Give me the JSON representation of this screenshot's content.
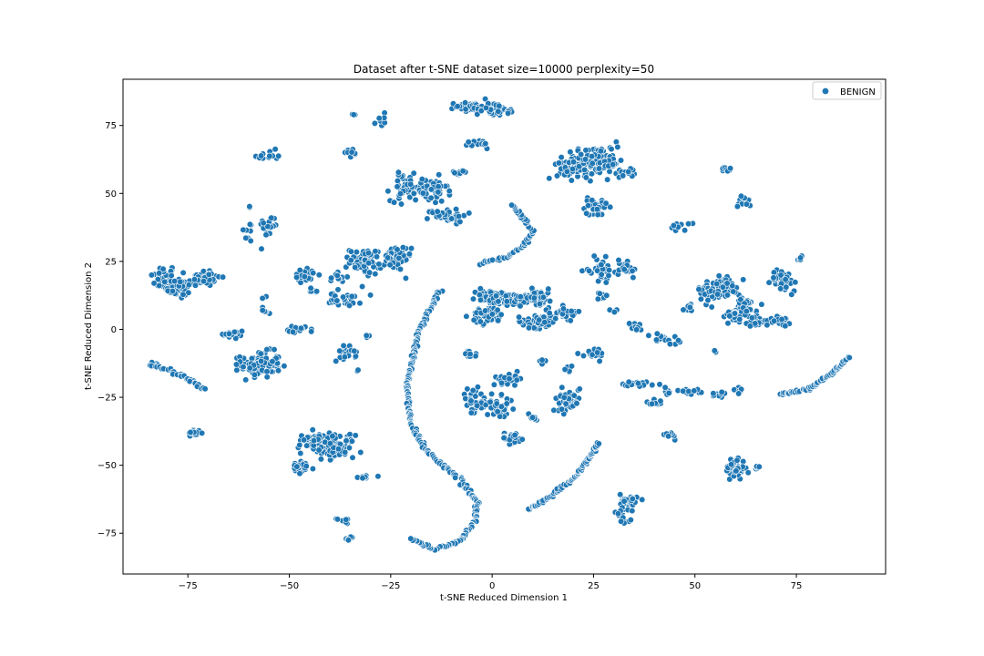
{
  "chart_data": {
    "type": "scatter",
    "title": "Dataset after t-SNE dataset size=10000 perplexity=50",
    "xlabel": "t-SNE Reduced Dimension 1",
    "ylabel": "t-SNE Reduced Dimension 2",
    "xlim": [
      -91,
      97
    ],
    "ylim": [
      -90,
      92
    ],
    "xticks": [
      -75,
      -50,
      -25,
      0,
      25,
      50,
      75
    ],
    "yticks": [
      75,
      50,
      25,
      0,
      -25,
      -50,
      -75
    ],
    "xtick_labels": [
      "−75",
      "−50",
      "−25",
      "0",
      "25",
      "50",
      "75"
    ],
    "ytick_labels": [
      "75",
      "50",
      "25",
      "0",
      "−25",
      "−50",
      "−75"
    ],
    "grid": false,
    "legend_position": "top-right",
    "series": [
      {
        "name": "BENIGN",
        "color": "#1f77b4",
        "clusters": [
          {
            "cx": -81,
            "cy": 19,
            "sx": 2.0,
            "sy": 3.0,
            "n": 40
          },
          {
            "cx": -77,
            "cy": 15,
            "sx": 2.0,
            "sy": 2.5,
            "n": 40
          },
          {
            "cx": -71,
            "cy": 19,
            "sx": 2.5,
            "sy": 2.0,
            "n": 40
          },
          {
            "cx": -64,
            "cy": -2,
            "sx": 2.0,
            "sy": 1.2,
            "n": 20
          },
          {
            "cx": -60,
            "cy": 36,
            "sx": 0.8,
            "sy": 2.5,
            "n": 8
          },
          {
            "cx": -57,
            "cy": 64,
            "sx": 1.0,
            "sy": 1.0,
            "n": 6
          },
          {
            "cx": -54,
            "cy": 64,
            "sx": 1.2,
            "sy": 2.0,
            "n": 8
          },
          {
            "cx": -55,
            "cy": 38,
            "sx": 1.5,
            "sy": 2.5,
            "n": 18
          },
          {
            "cx": -56,
            "cy": 7,
            "sx": 1.0,
            "sy": 1.0,
            "n": 6
          },
          {
            "cx": -56,
            "cy": 12,
            "sx": 0.5,
            "sy": 0.5,
            "n": 2
          },
          {
            "cx": -57,
            "cy": -13,
            "sx": 3.0,
            "sy": 3.0,
            "n": 110
          },
          {
            "cx": -46,
            "cy": 20,
            "sx": 2.0,
            "sy": 1.5,
            "n": 22
          },
          {
            "cx": -44,
            "cy": 14,
            "sx": 1.0,
            "sy": 0.8,
            "n": 8
          },
          {
            "cx": -47,
            "cy": 0,
            "sx": 2.0,
            "sy": 0.8,
            "n": 16
          },
          {
            "cx": -44,
            "cy": -42,
            "sx": 2.5,
            "sy": 2.5,
            "n": 60
          },
          {
            "cx": -38,
            "cy": -43,
            "sx": 2.5,
            "sy": 2.5,
            "n": 70
          },
          {
            "cx": -47,
            "cy": -51,
            "sx": 2.0,
            "sy": 1.5,
            "n": 25
          },
          {
            "cx": -38,
            "cy": 19,
            "sx": 1.5,
            "sy": 2.0,
            "n": 12
          },
          {
            "cx": -36,
            "cy": 11,
            "sx": 2.5,
            "sy": 1.5,
            "n": 35
          },
          {
            "cx": -36,
            "cy": -9,
            "sx": 1.5,
            "sy": 1.8,
            "n": 22
          },
          {
            "cx": -37,
            "cy": -70,
            "sx": 1.2,
            "sy": 1.0,
            "n": 10
          },
          {
            "cx": -35,
            "cy": -77,
            "sx": 0.8,
            "sy": 0.4,
            "n": 5
          },
          {
            "cx": -35,
            "cy": 65,
            "sx": 1.0,
            "sy": 1.0,
            "n": 10
          },
          {
            "cx": -34,
            "cy": 79,
            "sx": 0.4,
            "sy": 0.4,
            "n": 3
          },
          {
            "cx": -31,
            "cy": -54,
            "sx": 1.2,
            "sy": 0.6,
            "n": 8
          },
          {
            "cx": -31,
            "cy": -3,
            "sx": 0.6,
            "sy": 0.6,
            "n": 3
          },
          {
            "cx": -33,
            "cy": -15,
            "sx": 0.4,
            "sy": 0.4,
            "n": 2
          },
          {
            "cx": -31,
            "cy": 25,
            "sx": 2.5,
            "sy": 3.0,
            "n": 60
          },
          {
            "cx": -24,
            "cy": 26,
            "sx": 2.5,
            "sy": 3.0,
            "n": 55
          },
          {
            "cx": -27,
            "cy": 77,
            "sx": 0.8,
            "sy": 1.5,
            "n": 6
          },
          {
            "cx": -29,
            "cy": 76,
            "sx": 0.3,
            "sy": 0.3,
            "n": 2
          },
          {
            "cx": -21,
            "cy": 52,
            "sx": 2.5,
            "sy": 3.0,
            "n": 55
          },
          {
            "cx": -15,
            "cy": 51,
            "sx": 2.5,
            "sy": 3.0,
            "n": 50
          },
          {
            "cx": -11,
            "cy": 42,
            "sx": 3.0,
            "sy": 1.5,
            "n": 45
          },
          {
            "cx": -8,
            "cy": 58,
            "sx": 1.0,
            "sy": 1.2,
            "n": 10
          },
          {
            "cx": -5,
            "cy": 82,
            "sx": 2.5,
            "sy": 1.0,
            "n": 40
          },
          {
            "cx": 0,
            "cy": 81,
            "sx": 2.5,
            "sy": 1.5,
            "n": 40
          },
          {
            "cx": 4,
            "cy": 80,
            "sx": 1.0,
            "sy": 0.8,
            "n": 8
          },
          {
            "cx": -3,
            "cy": 68,
            "sx": 1.5,
            "sy": 1.0,
            "n": 14
          },
          {
            "cx": -1,
            "cy": 12,
            "sx": 2.0,
            "sy": 1.8,
            "n": 40
          },
          {
            "cx": 4,
            "cy": 11,
            "sx": 3.5,
            "sy": 1.5,
            "n": 55
          },
          {
            "cx": -1,
            "cy": 5,
            "sx": 2.5,
            "sy": 2.0,
            "n": 45
          },
          {
            "cx": 11,
            "cy": 12,
            "sx": 2.5,
            "sy": 1.8,
            "n": 55
          },
          {
            "cx": 11,
            "cy": 3,
            "sx": 3.0,
            "sy": 1.5,
            "n": 55
          },
          {
            "cx": 18,
            "cy": 6,
            "sx": 2.5,
            "sy": 1.5,
            "n": 30
          },
          {
            "cx": -5,
            "cy": -9,
            "sx": 1.2,
            "sy": 1.0,
            "n": 14
          },
          {
            "cx": 4,
            "cy": -18,
            "sx": 2.5,
            "sy": 1.2,
            "n": 25
          },
          {
            "cx": -4,
            "cy": -27,
            "sx": 2.5,
            "sy": 3.0,
            "n": 40
          },
          {
            "cx": 2,
            "cy": -29,
            "sx": 2.0,
            "sy": 2.5,
            "n": 30
          },
          {
            "cx": 5,
            "cy": -40,
            "sx": 2.0,
            "sy": 1.2,
            "n": 25
          },
          {
            "cx": 10,
            "cy": -33,
            "sx": 1.0,
            "sy": 1.5,
            "n": 8
          },
          {
            "cx": 12,
            "cy": -12,
            "sx": 0.8,
            "sy": 0.8,
            "n": 5
          },
          {
            "cx": 19,
            "cy": -15,
            "sx": 1.0,
            "sy": 1.0,
            "n": 5
          },
          {
            "cx": 19,
            "cy": -25,
            "sx": 2.0,
            "sy": 3.0,
            "n": 40
          },
          {
            "cx": 16,
            "cy": -30,
            "sx": 1.0,
            "sy": 0.5,
            "n": 5
          },
          {
            "cx": 25,
            "cy": -9,
            "sx": 2.0,
            "sy": 1.5,
            "n": 18
          },
          {
            "cx": 20,
            "cy": 60,
            "sx": 2.5,
            "sy": 3.0,
            "n": 70
          },
          {
            "cx": 27,
            "cy": 62,
            "sx": 3.0,
            "sy": 3.5,
            "n": 90
          },
          {
            "cx": 25,
            "cy": 45,
            "sx": 2.0,
            "sy": 1.8,
            "n": 35
          },
          {
            "cx": 33,
            "cy": 58,
            "sx": 1.2,
            "sy": 1.5,
            "n": 12
          },
          {
            "cx": 27,
            "cy": 22,
            "sx": 2.0,
            "sy": 2.5,
            "n": 35
          },
          {
            "cx": 33,
            "cy": 23,
            "sx": 1.5,
            "sy": 2.0,
            "n": 22
          },
          {
            "cx": 27,
            "cy": 12,
            "sx": 1.0,
            "sy": 1.0,
            "n": 8
          },
          {
            "cx": 30,
            "cy": 7,
            "sx": 0.6,
            "sy": 0.6,
            "n": 3
          },
          {
            "cx": 35,
            "cy": 1,
            "sx": 1.2,
            "sy": 1.0,
            "n": 10
          },
          {
            "cx": 41,
            "cy": -3,
            "sx": 1.5,
            "sy": 1.0,
            "n": 12
          },
          {
            "cx": 45,
            "cy": -5,
            "sx": 1.0,
            "sy": 1.0,
            "n": 6
          },
          {
            "cx": 36,
            "cy": -20,
            "sx": 3.0,
            "sy": 0.5,
            "n": 25
          },
          {
            "cx": 40,
            "cy": -27,
            "sx": 1.2,
            "sy": 1.0,
            "n": 10
          },
          {
            "cx": 43,
            "cy": -23,
            "sx": 1.0,
            "sy": 1.5,
            "n": 8
          },
          {
            "cx": 49,
            "cy": -23,
            "sx": 2.0,
            "sy": 1.0,
            "n": 14
          },
          {
            "cx": 56,
            "cy": -24,
            "sx": 1.5,
            "sy": 1.0,
            "n": 12
          },
          {
            "cx": 60,
            "cy": -23,
            "sx": 1.0,
            "sy": 1.5,
            "n": 8
          },
          {
            "cx": 44,
            "cy": -39,
            "sx": 1.0,
            "sy": 0.8,
            "n": 10
          },
          {
            "cx": 34,
            "cy": -63,
            "sx": 1.5,
            "sy": 1.5,
            "n": 35
          },
          {
            "cx": 32,
            "cy": -67,
            "sx": 1.2,
            "sy": 1.0,
            "n": 10
          },
          {
            "cx": 33,
            "cy": -71,
            "sx": 0.8,
            "sy": 0.8,
            "n": 6
          },
          {
            "cx": 46,
            "cy": 38,
            "sx": 1.5,
            "sy": 1.0,
            "n": 10
          },
          {
            "cx": 58,
            "cy": 59,
            "sx": 1.0,
            "sy": 1.0,
            "n": 8
          },
          {
            "cx": 62,
            "cy": 47,
            "sx": 1.2,
            "sy": 1.5,
            "n": 12
          },
          {
            "cx": 49,
            "cy": 8,
            "sx": 1.0,
            "sy": 1.2,
            "n": 8
          },
          {
            "cx": 54,
            "cy": 14,
            "sx": 2.0,
            "sy": 2.5,
            "n": 45
          },
          {
            "cx": 58,
            "cy": 16,
            "sx": 2.0,
            "sy": 2.5,
            "n": 40
          },
          {
            "cx": 62,
            "cy": 8,
            "sx": 2.0,
            "sy": 2.5,
            "n": 40
          },
          {
            "cx": 59,
            "cy": 5,
            "sx": 2.0,
            "sy": 1.5,
            "n": 20
          },
          {
            "cx": 66,
            "cy": 3,
            "sx": 2.0,
            "sy": 1.0,
            "n": 25
          },
          {
            "cx": 71,
            "cy": 3,
            "sx": 1.5,
            "sy": 1.0,
            "n": 20
          },
          {
            "cx": 72,
            "cy": 18,
            "sx": 2.0,
            "sy": 2.5,
            "n": 40
          },
          {
            "cx": 76,
            "cy": 26,
            "sx": 0.6,
            "sy": 0.8,
            "n": 5
          },
          {
            "cx": 60,
            "cy": -51,
            "sx": 1.5,
            "sy": 2.5,
            "n": 45
          },
          {
            "cx": 65,
            "cy": -51,
            "sx": 1.0,
            "sy": 0.5,
            "n": 5
          },
          {
            "cx": -83,
            "cy": -13,
            "sx": 1.2,
            "sy": 0.8,
            "n": 14
          },
          {
            "cx": -73,
            "cy": -38,
            "sx": 1.2,
            "sy": 1.0,
            "n": 12
          },
          {
            "cx": 55,
            "cy": -8,
            "sx": 0.3,
            "sy": 0.3,
            "n": 2
          },
          {
            "cx": -60,
            "cy": 45,
            "sx": 0.3,
            "sy": 0.3,
            "n": 2
          }
        ],
        "curves": [
          {
            "points": [
              [
                -84,
                -13
              ],
              [
                -80,
                -15
              ],
              [
                -75,
                -18
              ],
              [
                -71,
                -22
              ]
            ],
            "n": 30
          },
          {
            "points": [
              [
                -13,
                14
              ],
              [
                -18,
                0
              ],
              [
                -21,
                -20
              ],
              [
                -20,
                -35
              ],
              [
                -16,
                -45
              ],
              [
                -8,
                -55
              ],
              [
                -4,
                -63
              ],
              [
                -4,
                -70
              ],
              [
                -8,
                -78
              ],
              [
                -14,
                -81
              ],
              [
                -20,
                -77
              ]
            ],
            "n": 230
          },
          {
            "points": [
              [
                -3,
                24
              ],
              [
                4,
                27
              ],
              [
                8,
                31
              ],
              [
                10,
                36
              ],
              [
                7,
                42
              ],
              [
                5,
                46
              ]
            ],
            "n": 60
          },
          {
            "points": [
              [
                9,
                -66
              ],
              [
                14,
                -62
              ],
              [
                20,
                -55
              ],
              [
                25,
                -45
              ],
              [
                26,
                -42
              ]
            ],
            "n": 75
          },
          {
            "points": [
              [
                71,
                -24
              ],
              [
                78,
                -22
              ],
              [
                84,
                -16
              ],
              [
                88,
                -10
              ]
            ],
            "n": 60
          }
        ]
      }
    ]
  }
}
